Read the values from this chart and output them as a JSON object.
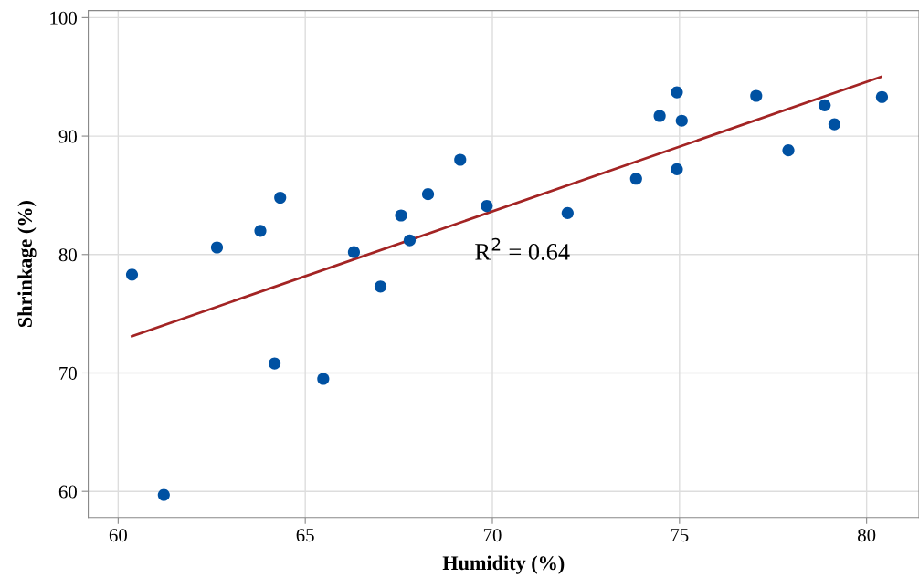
{
  "chart_data": {
    "type": "scatter",
    "xlabel": "Humidity (%)",
    "ylabel": "Shrinkage (%)",
    "xlim": [
      59.2,
      81.4
    ],
    "xticks": [
      60,
      65,
      70,
      75,
      80
    ],
    "ylim": [
      57.8,
      100.6
    ],
    "yticks": [
      60,
      70,
      80,
      90,
      100
    ],
    "grid": true,
    "series": [
      {
        "color": "#0051a2",
        "marker": "circle",
        "x": [
          60.37,
          61.22,
          62.64,
          63.8,
          64.33,
          64.18,
          65.48,
          66.3,
          67.01,
          67.56,
          67.79,
          68.28,
          69.14,
          69.85,
          72.01,
          73.84,
          74.93,
          74.47,
          74.93,
          75.06,
          77.05,
          77.91,
          78.88,
          79.14,
          80.41
        ],
        "values": [
          78.3,
          59.7,
          80.6,
          82.0,
          84.8,
          70.8,
          69.5,
          80.2,
          77.3,
          83.3,
          81.2,
          85.1,
          88.0,
          84.1,
          83.5,
          86.4,
          87.2,
          91.7,
          93.7,
          91.3,
          93.4,
          88.8,
          92.6,
          91.0,
          93.3
        ]
      },
      {
        "type": "line",
        "marker": "none",
        "color": "#a32424",
        "x": [
          60.37,
          80.38
        ],
        "values": [
          73.1,
          95.0
        ]
      }
    ],
    "annotations": [
      "R$^{2}$ = 0.64"
    ]
  }
}
